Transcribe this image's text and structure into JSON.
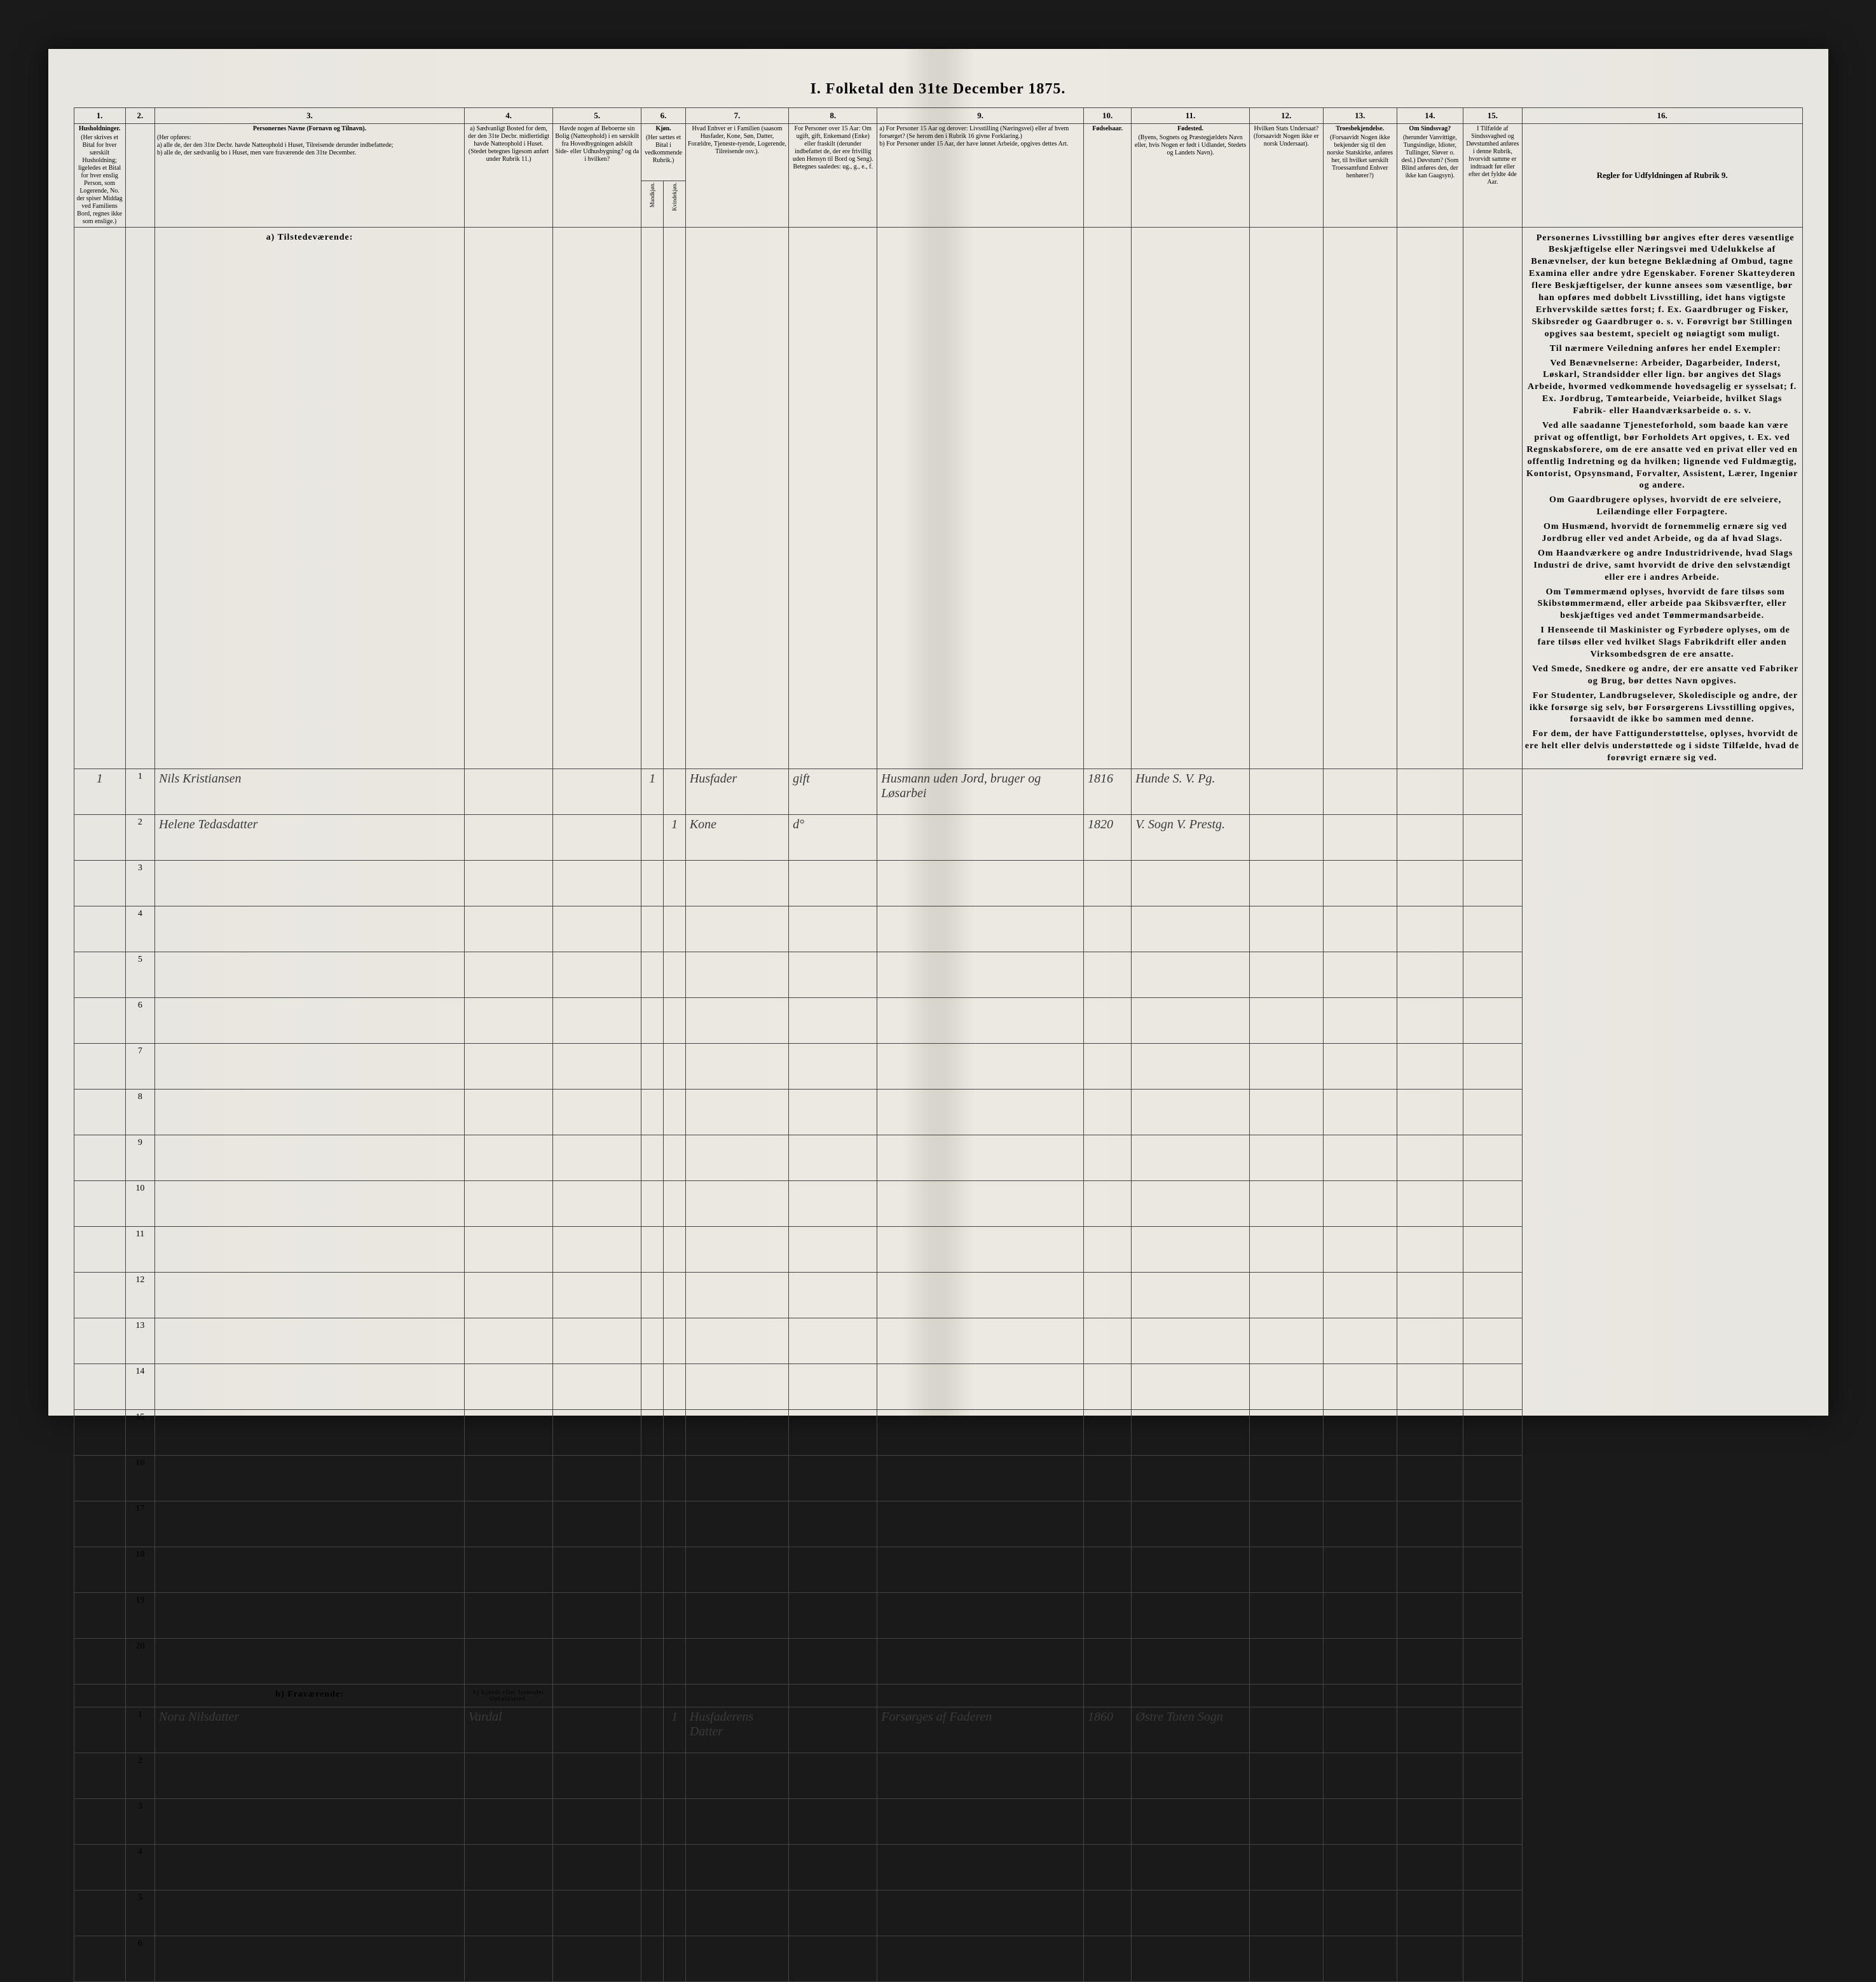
{
  "title": "I. Folketal den 31te December 1875.",
  "columns": {
    "nums": [
      "1.",
      "2.",
      "3.",
      "4.",
      "5.",
      "6.",
      "7.",
      "8.",
      "9.",
      "10.",
      "11.",
      "12.",
      "13.",
      "14.",
      "15.",
      "16."
    ],
    "h1": {
      "title": "Husholdninger.",
      "body": "(Her skrives et Bital for hver særskilt Husholdning; ligeledes et Bital for hver enslig Person, som Logerende, No. der spiser Middag ved Familiens Bord, regnes ikke som enslige.)"
    },
    "h3": {
      "title": "Personernes Navne (Fornavn og Tilnavn).",
      "body": "(Her opføres:\na) alle de, der den 31te Decbr. havde Natteophold i Huset, Tilreisende derunder indbefattede;\nb) alle de, der sædvanlig bo i Huset, men vare fraværende den 31te December."
    },
    "h4": {
      "title": "",
      "body": "a) Sædvanligt Bosted for dem, der den 31te Decbr. midlertidigt havde Natteophold i Huset. (Stedet betegnes ligesom anført under Rubrik 11.)"
    },
    "h5": {
      "title": "",
      "body": "Havde nogen af Beboerne sin Bolig (Natteophold) i en særskilt fra Hovedbygningen adskilt Side- eller Udhusbygning? og da i hvilken?"
    },
    "h6": {
      "title": "Kjøn.",
      "body": "(Her sættes et Bital i vedkommende Rubrik.)",
      "sub_a": "Mandkjøn.",
      "sub_b": "Kvindekjøn."
    },
    "h7": {
      "title": "",
      "body": "Hvad Enhver er i Familien (saasom Husfader, Kone, Søn, Datter, Forældre, Tjeneste-tyende, Logerende, Tilreisende osv.)."
    },
    "h8": {
      "title": "",
      "body": "For Personer over 15 Aar: Om ugift, gift, Enkemand (Enke) eller fraskilt (derunder indbefattet de, der ere frivillig uden Hensyn til Bord og Seng). Betegnes saaledes: ug., g., e., f."
    },
    "h9": {
      "title": "",
      "body": "a) For Personer 15 Aar og derover: Livsstilling (Næringsvei) eller af hvem forsørget? (Se herom den i Rubrik 16 givne Forklaring.)\nb) For Personer under 15 Aar, der have lønnet Arbeide, opgives dettes Art."
    },
    "h10": {
      "title": "Fødselsaar."
    },
    "h11": {
      "title": "Fødested.",
      "body": "(Byens, Sognets og Præstegjældets Navn eller, hvis Nogen er født i Udlandet, Stedets og Landets Navn)."
    },
    "h12": {
      "title": "",
      "body": "Hvilken Stats Undersaat? (forsaavidt Nogen ikke er norsk Undersaat)."
    },
    "h13": {
      "title": "Troesbekjendelse.",
      "body": "(Forsaavidt Nogen ikke bekjender sig til den norske Statskirke, anføres her, til hvilket særskilt Troessamfund Enhver henhører?)"
    },
    "h14": {
      "title": "Om Sindssvag?",
      "body": "(herunder Vanvittige, Tungsindige, Idioter, Tullinger, Sløver o. desl.) Døvstum? (Som Blind anføres den, der ikke kan Gaagsyn)."
    },
    "h15": {
      "title": "",
      "body": "I Tilfælde af Sindssvaghed og Døvstumhed anføres i denne Rubrik, hvorvidt samme er indtraadt før eller efter det fyldte 4de Aar."
    },
    "h16": {
      "title": "Regler for Udfyldningen af Rubrik 9."
    }
  },
  "sections": {
    "present": "a) Tilstedeværende:",
    "absent": "b) Fraværende:",
    "absent_col4": "b) Kjendt eller formodet Opholdssted."
  },
  "present_rows": [
    {
      "hh": "1",
      "num": "1",
      "name": "Nils Kristiansen",
      "sex_m": "1",
      "sex_f": "",
      "relation": "Husfader",
      "marital": "gift",
      "occupation": "Husmann uden Jord, bruger og Løsarbei",
      "birth": "1816",
      "birthplace": "Hunde S. V. Pg."
    },
    {
      "hh": "",
      "num": "2",
      "name": "Helene Tedasdatter",
      "sex_m": "",
      "sex_f": "1",
      "relation": "Kone",
      "marital": "d°",
      "occupation": "",
      "birth": "1820",
      "birthplace": "V. Sogn V. Prestg."
    },
    {
      "num": "3"
    },
    {
      "num": "4"
    },
    {
      "num": "5"
    },
    {
      "num": "6"
    },
    {
      "num": "7"
    },
    {
      "num": "8"
    },
    {
      "num": "9"
    },
    {
      "num": "10"
    },
    {
      "num": "11"
    },
    {
      "num": "12"
    },
    {
      "num": "13"
    },
    {
      "num": "14"
    },
    {
      "num": "15"
    },
    {
      "num": "16"
    },
    {
      "num": "17"
    },
    {
      "num": "18"
    },
    {
      "num": "19"
    },
    {
      "num": "20"
    }
  ],
  "absent_rows": [
    {
      "num": "1",
      "name": "Nora Nilsdatter",
      "col4": "Vardal",
      "sex_f": "1",
      "relation": "Husfaderens Datter",
      "marital": "",
      "occupation": "Forsørges af Faderen",
      "birth": "1860",
      "birthplace": "Østre Toten Sogn"
    },
    {
      "num": "2"
    },
    {
      "num": "3"
    },
    {
      "num": "4"
    },
    {
      "num": "5"
    },
    {
      "num": "6"
    }
  ],
  "instructions": [
    "Personernes Livsstilling bør angives efter deres væsentlige Beskjæftigelse eller Næringsvei med Udelukkelse af Benævnelser, der kun betegne Beklædning af Ombud, tagne Examina eller andre ydre Egenskaber. Forener Skatteyderen flere Beskjæftigelser, der kunne ansees som væsentlige, bør han opføres med dobbelt Livsstilling, idet hans vigtigste Erhvervskilde sættes forst; f. Ex. Gaardbruger og Fisker, Skibsreder og Gaardbruger o. s. v. Forøvrigt bør Stillingen opgives saa bestemt, specielt og nøiagtigt som muligt.",
    "Til nærmere Veiledning anføres her endel Exempler:",
    "Ved Benævnelserne: Arbeider, Dagarbeider, Inderst, Løskarl, Strandsidder eller lign. bør angives det Slags Arbeide, hvormed vedkommende hovedsagelig er sysselsat; f. Ex. Jordbrug, Tømtearbeide, Veiarbeide, hvilket Slags Fabrik- eller Haandværksarbeide o. s. v.",
    "Ved alle saadanne Tjenesteforhold, som baade kan være privat og offentligt, bør Forholdets Art opgives, t. Ex. ved Regnskabsforere, om de ere ansatte ved en privat eller ved en offentlig Indretning og da hvilken; lignende ved Fuldmægtig, Kontorist, Opsynsmand, Forvalter, Assistent, Lærer, Ingeniør og andere.",
    "Om Gaardbrugere oplyses, hvorvidt de ere selveiere, Leilændinge eller Forpagtere.",
    "Om Husmænd, hvorvidt de fornemmelig ernære sig ved Jordbrug eller ved andet Arbeide, og da af hvad Slags.",
    "Om Haandværkere og andre Industridrivende, hvad Slags Industri de drive, samt hvorvidt de drive den selvstændigt eller ere i andres Arbeide.",
    "Om Tømmermænd oplyses, hvorvidt de fare tilsøs som Skibstømmermænd, eller arbeide paa Skibsværfter, eller beskjæftiges ved andet Tømmermandsarbeide.",
    "I Henseende til Maskinister og Fyrbødere oplyses, om de fare tilsøs eller ved hvilket Slags Fabrikdrift eller anden Virksombedsgren de ere ansatte.",
    "Ved Smede, Snedkere og andre, der ere ansatte ved Fabriker og Brug, bør dettes Navn opgives.",
    "For Studenter, Landbrugselever, Skoledisciple og andre, der ikke forsørge sig selv, bør Forsørgerens Livsstilling opgives, forsaavidt de ikke bo sammen med denne.",
    "For dem, der have Fattigunderstøttelse, oplyses, hvorvidt de ere helt eller delvis understøttede og i sidste Tilfælde, hvad de forøvrigt ernære sig ved."
  ]
}
